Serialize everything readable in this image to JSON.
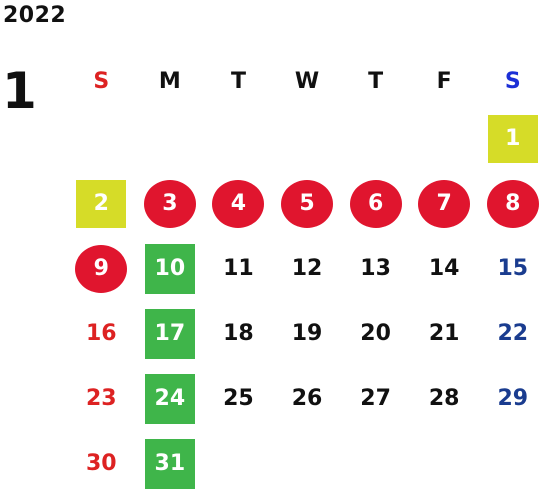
{
  "year": "2022",
  "month": "1",
  "weekdays": [
    "S",
    "M",
    "T",
    "W",
    "T",
    "F",
    "S"
  ],
  "weeks": [
    [
      "",
      "",
      "",
      "",
      "",
      "",
      "1"
    ],
    [
      "2",
      "3",
      "4",
      "5",
      "6",
      "7",
      "8"
    ],
    [
      "9",
      "10",
      "11",
      "12",
      "13",
      "14",
      "15"
    ],
    [
      "16",
      "17",
      "18",
      "19",
      "20",
      "21",
      "22"
    ],
    [
      "23",
      "24",
      "25",
      "26",
      "27",
      "28",
      "29"
    ],
    [
      "30",
      "31",
      "",
      "",
      "",
      "",
      ""
    ]
  ],
  "highlights": {
    "holiday_circle": [
      "3",
      "4",
      "5",
      "6",
      "7",
      "8",
      "9"
    ],
    "yellow_square": [
      "1",
      "2"
    ],
    "green_square": [
      "10",
      "17",
      "24",
      "31"
    ]
  },
  "colors": {
    "sunday": "#dd2222",
    "saturday": "#1a3c8f",
    "saturday_header": "#1c2fd6",
    "holiday_circle": "#e0152e",
    "yellow_square": "#d6dc28",
    "green_square": "#3fb54a"
  }
}
